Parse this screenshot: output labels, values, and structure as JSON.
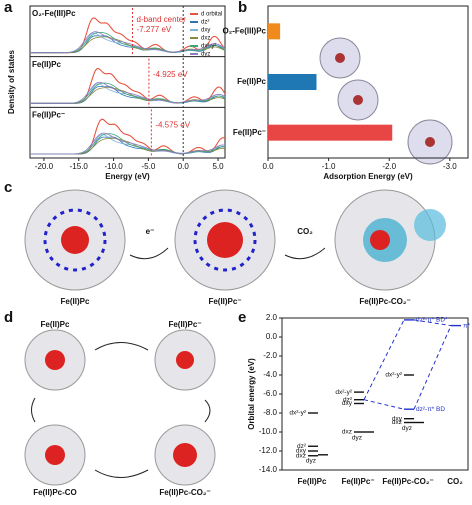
{
  "panels": {
    "a": {
      "letter": "a",
      "y_label": "Density of states",
      "x_label": "Energy (eV)",
      "xlim": [
        -22,
        6
      ],
      "xticks": [
        {
          "value": -20,
          "label": "-20.0"
        },
        {
          "value": -15,
          "label": "-15.0"
        },
        {
          "value": -10,
          "label": "-10.0"
        },
        {
          "value": -5,
          "label": "-5.0"
        },
        {
          "value": 0,
          "label": "0.0"
        },
        {
          "value": 5,
          "label": "5.0"
        }
      ],
      "annotation": "d-band center",
      "subplots": [
        {
          "name": "O₂-Fe(III)Pc",
          "d_band_center": -7.277,
          "value_label": "-7.277 eV"
        },
        {
          "name": "Fe(II)Pc",
          "d_band_center": -4.925,
          "value_label": "-4.925 eV"
        },
        {
          "name": "Fe(II)Pc⁻",
          "d_band_center": -4.575,
          "value_label": "-4.575 eV"
        }
      ],
      "legend": [
        {
          "name": "d orbital",
          "color": "#e8543f"
        },
        {
          "name": "dz²",
          "color": "#2e74b5"
        },
        {
          "name": "dxy",
          "color": "#7fb3d8"
        },
        {
          "name": "dxz",
          "color": "#8a8a3a"
        },
        {
          "name": "dx²-y²",
          "color": "#3aa67a"
        },
        {
          "name": "dyz",
          "color": "#8f7bc8"
        }
      ]
    },
    "b": {
      "letter": "b",
      "type": "bar",
      "x_label": "Adsorption Energy (eV)",
      "xlim": [
        0,
        -3.3
      ],
      "xticks": [
        {
          "value": 0,
          "label": "0.0"
        },
        {
          "value": -1,
          "label": "-1.0"
        },
        {
          "value": -2,
          "label": "-2.0"
        },
        {
          "value": -3,
          "label": "-3.0"
        }
      ],
      "categories": [
        "O₂-Fe(III)Pc",
        "Fe(II)Pc",
        "Fe(II)Pc⁻"
      ],
      "values": [
        -0.2,
        -0.8,
        -2.05
      ],
      "colors": [
        "#f08a1c",
        "#1f77b4",
        "#e84545"
      ]
    },
    "c": {
      "letter": "c",
      "labels": [
        "Fe(II)Pc",
        "Fe(II)Pc⁻",
        "Fe(II)Pc-CO₂⁻"
      ],
      "arrows": [
        "e⁻",
        "CO₂"
      ]
    },
    "d": {
      "letter": "d",
      "labels": [
        "Fe(II)Pc",
        "Fe(II)Pc⁻",
        "Fe(II)Pc-CO",
        "Fe(II)Pc-CO₂⁻"
      ]
    },
    "e": {
      "letter": "e",
      "y_label": "Orbital energy (eV)",
      "ylim": [
        -14,
        2
      ],
      "yticks": [
        {
          "value": 2,
          "label": "2.0"
        },
        {
          "value": 0,
          "label": "0.0"
        },
        {
          "value": -2,
          "label": "-2.0"
        },
        {
          "value": -4,
          "label": "-4.0"
        },
        {
          "value": -6,
          "label": "-6.0"
        },
        {
          "value": -8,
          "label": "-8.0"
        },
        {
          "value": -10,
          "label": "-10.0"
        },
        {
          "value": -12,
          "label": "-12.0"
        },
        {
          "value": -14,
          "label": "-14.0"
        }
      ],
      "columns": [
        {
          "name": "Fe(II)Pc",
          "levels": [
            {
              "label": "dx²-y²",
              "value": -8.0
            },
            {
              "label": "dz²",
              "value": -11.5
            },
            {
              "label": "dxy",
              "value": -12.0
            },
            {
              "label": "dxz",
              "value": -12.5
            },
            {
              "label": "dyz",
              "value": -12.4
            }
          ]
        },
        {
          "name": "Fe(II)Pc⁻",
          "levels": [
            {
              "label": "dx²-y²",
              "value": -5.8
            },
            {
              "label": "dz²",
              "value": -6.6
            },
            {
              "label": "dxy",
              "value": -7.0
            },
            {
              "label": "dxz",
              "value": -10.0
            },
            {
              "label": "dyz",
              "value": -10.0
            }
          ]
        },
        {
          "name": "Fe(II)Pc-CO₂⁻",
          "levels": [
            {
              "label": "dz²-π* BD*",
              "value": 1.8
            },
            {
              "label": "dx²-y²",
              "value": -4.0
            },
            {
              "label": "dz²-π* BD",
              "value": -7.6
            },
            {
              "label": "dxy",
              "value": -8.6
            },
            {
              "label": "dxz",
              "value": -9.0
            },
            {
              "label": "dyz",
              "value": -9.0
            }
          ]
        },
        {
          "name": "CO₂",
          "levels": [
            {
              "label": "π*",
              "value": 1.2
            }
          ]
        }
      ]
    }
  }
}
